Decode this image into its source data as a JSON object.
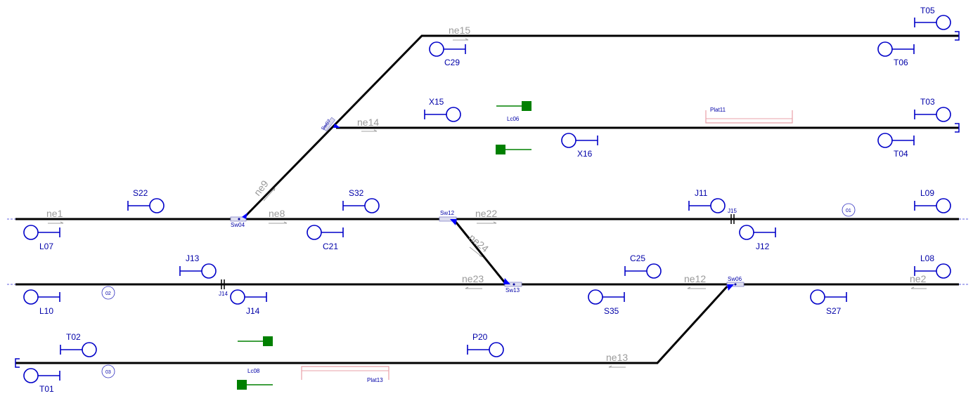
{
  "colors": {
    "track": "#000000",
    "signal": "#0000c8",
    "label": "#0000a8",
    "section_label": "#9a9a9a",
    "crossing": "#008000",
    "platform": "#e8a0a8",
    "switch_marker": "#0000ff"
  },
  "signals": [
    {
      "label": "T05"
    },
    {
      "label": "T06"
    },
    {
      "label": "C29"
    },
    {
      "label": "X15"
    },
    {
      "label": "T03"
    },
    {
      "label": "X16"
    },
    {
      "label": "T04"
    },
    {
      "label": "S22"
    },
    {
      "label": "S32"
    },
    {
      "label": "J11"
    },
    {
      "label": "L09"
    },
    {
      "label": "L07"
    },
    {
      "label": "C21"
    },
    {
      "label": "J12"
    },
    {
      "label": "J13"
    },
    {
      "label": "C25"
    },
    {
      "label": "L08"
    },
    {
      "label": "L10"
    },
    {
      "label": "J14"
    },
    {
      "label": "S35"
    },
    {
      "label": "S27"
    },
    {
      "label": "T02"
    },
    {
      "label": "P20"
    },
    {
      "label": "T01"
    }
  ],
  "sections": [
    {
      "label": "ne15"
    },
    {
      "label": "ne14"
    },
    {
      "label": "ne9"
    },
    {
      "label": "ne1"
    },
    {
      "label": "ne8"
    },
    {
      "label": "ne22"
    },
    {
      "label": "ne24"
    },
    {
      "label": "ne23"
    },
    {
      "label": "ne12"
    },
    {
      "label": "ne2"
    },
    {
      "label": "ne13"
    }
  ],
  "switches": [
    {
      "label": "Sw07"
    },
    {
      "label": "Sw04"
    },
    {
      "label": "Sw12"
    },
    {
      "label": "Sw13"
    },
    {
      "label": "Sw06"
    }
  ],
  "joints": [
    {
      "label": "J15"
    },
    {
      "label": "J14"
    }
  ],
  "crossings": [
    {
      "label": "Lc06"
    },
    {
      "label": "Lc08"
    }
  ],
  "platforms": [
    {
      "label": "Plat11"
    },
    {
      "label": "Plat13"
    }
  ],
  "markers": [
    {
      "label": "01"
    },
    {
      "label": "02"
    },
    {
      "label": "03"
    }
  ]
}
